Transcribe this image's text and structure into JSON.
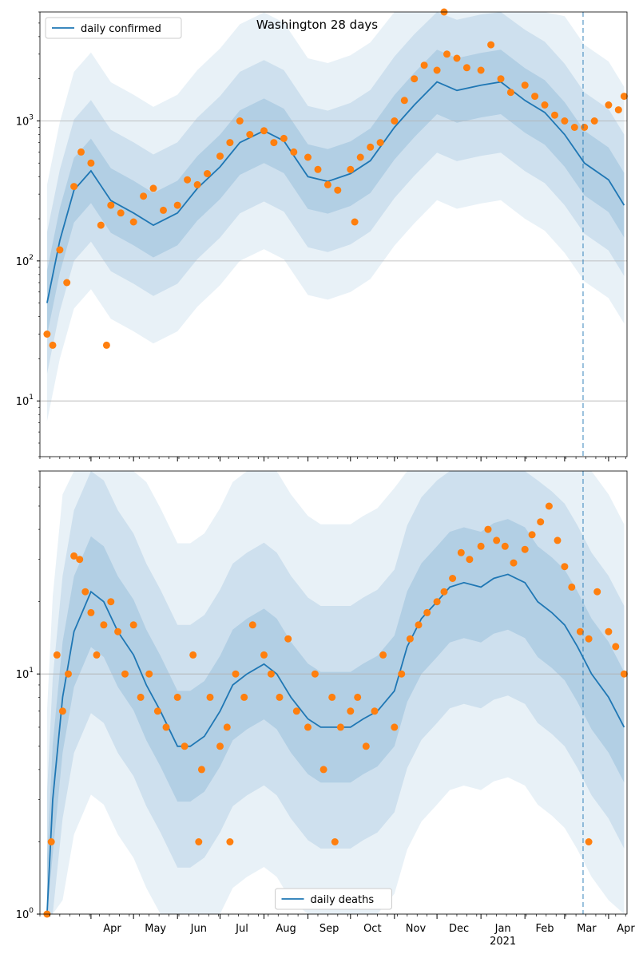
{
  "figure": {
    "title": "Washington 28 days"
  },
  "colors": {
    "line": "#1f77b4",
    "points": "#ff7f0e",
    "band": "#1f77b4",
    "grid": "#b0b0b0",
    "vline": "#1f77b4"
  },
  "chart_data": [
    {
      "type": "line",
      "panel": "top",
      "scale": "log",
      "ylim": [
        4,
        6000
      ],
      "yticks": [
        10,
        100,
        1000
      ],
      "ytick_labels": [
        "10^1",
        "10^2",
        "10^3"
      ],
      "grid": true,
      "legend": {
        "label": "daily confirmed",
        "position": "top-left"
      },
      "series": [
        {
          "name": "daily confirmed",
          "role": "model-median",
          "x": [
            "2020-03-01",
            "2020-03-10",
            "2020-03-20",
            "2020-04-01",
            "2020-04-15",
            "2020-05-01",
            "2020-05-15",
            "2020-06-01",
            "2020-06-15",
            "2020-07-01",
            "2020-07-15",
            "2020-08-01",
            "2020-08-15",
            "2020-09-01",
            "2020-09-15",
            "2020-10-01",
            "2020-10-15",
            "2020-11-01",
            "2020-11-15",
            "2020-12-01",
            "2020-12-15",
            "2021-01-01",
            "2021-01-15",
            "2021-02-01",
            "2021-02-15",
            "2021-03-01",
            "2021-03-15",
            "2021-04-01",
            "2021-04-12"
          ],
          "y": [
            50,
            140,
            320,
            440,
            270,
            220,
            180,
            220,
            330,
            470,
            700,
            850,
            720,
            400,
            370,
            420,
            520,
            900,
            1300,
            1900,
            1650,
            1800,
            1900,
            1400,
            1150,
            800,
            500,
            380,
            250
          ]
        },
        {
          "name": "observed",
          "role": "points",
          "x": [
            "2020-03-01",
            "2020-03-05",
            "2020-03-10",
            "2020-03-15",
            "2020-03-20",
            "2020-03-25",
            "2020-04-01",
            "2020-04-08",
            "2020-04-15",
            "2020-04-22",
            "2020-05-01",
            "2020-05-08",
            "2020-05-15",
            "2020-05-22",
            "2020-06-01",
            "2020-06-08",
            "2020-06-15",
            "2020-06-22",
            "2020-07-01",
            "2020-07-08",
            "2020-07-15",
            "2020-07-22",
            "2020-08-01",
            "2020-08-08",
            "2020-08-15",
            "2020-08-22",
            "2020-09-01",
            "2020-09-08",
            "2020-09-15",
            "2020-09-22",
            "2020-10-01",
            "2020-10-08",
            "2020-10-15",
            "2020-10-22",
            "2020-11-01",
            "2020-11-08",
            "2020-11-15",
            "2020-11-22",
            "2020-12-01",
            "2020-12-08",
            "2020-12-15",
            "2020-12-22",
            "2021-01-01",
            "2021-01-08",
            "2021-01-15",
            "2021-01-22",
            "2021-02-01",
            "2021-02-08",
            "2021-02-15",
            "2021-02-22",
            "2021-03-01",
            "2021-03-08",
            "2021-03-15",
            "2021-03-22",
            "2021-04-01",
            "2021-04-08",
            "2021-04-12",
            "2020-04-12",
            "2020-10-04",
            "2020-12-06"
          ],
          "y": [
            30,
            25,
            120,
            70,
            340,
            600,
            500,
            180,
            250,
            220,
            190,
            290,
            330,
            230,
            250,
            380,
            350,
            420,
            560,
            700,
            1000,
            800,
            850,
            700,
            750,
            600,
            550,
            450,
            350,
            320,
            450,
            550,
            650,
            700,
            1000,
            1400,
            2000,
            2500,
            2300,
            3000,
            2800,
            2400,
            2300,
            3500,
            2000,
            1600,
            1800,
            1500,
            1300,
            1100,
            1000,
            900,
            900,
            1000,
            1300,
            1200,
            1500,
            25,
            190,
            6000
          ]
        }
      ]
    },
    {
      "type": "line",
      "panel": "bottom",
      "scale": "log",
      "ylim": [
        1,
        70
      ],
      "yticks": [
        1,
        10
      ],
      "ytick_labels": [
        "10^0",
        "10^1"
      ],
      "grid": true,
      "legend": {
        "label": "daily deaths",
        "position": "bottom-center"
      },
      "x_tick_labels": [
        "Apr",
        "May",
        "Jun",
        "Jul",
        "Aug",
        "Sep",
        "Oct",
        "Nov",
        "Dec",
        "Jan\n2021",
        "Feb",
        "Mar",
        "Apr"
      ],
      "series": [
        {
          "name": "daily deaths",
          "role": "model-median",
          "x": [
            "2020-03-01",
            "2020-03-05",
            "2020-03-12",
            "2020-03-20",
            "2020-04-01",
            "2020-04-10",
            "2020-04-20",
            "2020-05-01",
            "2020-05-10",
            "2020-05-20",
            "2020-06-01",
            "2020-06-10",
            "2020-06-20",
            "2020-07-01",
            "2020-07-10",
            "2020-07-20",
            "2020-08-01",
            "2020-08-10",
            "2020-08-20",
            "2020-09-01",
            "2020-09-10",
            "2020-09-20",
            "2020-10-01",
            "2020-10-10",
            "2020-10-20",
            "2020-11-01",
            "2020-11-10",
            "2020-11-20",
            "2020-12-01",
            "2020-12-10",
            "2020-12-20",
            "2021-01-01",
            "2021-01-10",
            "2021-01-20",
            "2021-02-01",
            "2021-02-10",
            "2021-02-20",
            "2021-03-01",
            "2021-03-10",
            "2021-03-20",
            "2021-04-01",
            "2021-04-12"
          ],
          "y": [
            1.0,
            3.0,
            8.0,
            15.0,
            22.0,
            20.0,
            15.0,
            12.0,
            9.0,
            7.0,
            5.0,
            5.0,
            5.5,
            7.0,
            9.0,
            10.0,
            11.0,
            10.0,
            8.0,
            6.5,
            6.0,
            6.0,
            6.0,
            6.5,
            7.0,
            8.5,
            13.0,
            17.0,
            20.0,
            23.0,
            24.0,
            23.0,
            25.0,
            26.0,
            24.0,
            20.0,
            18.0,
            16.0,
            13.0,
            10.0,
            8.0,
            6.0
          ]
        },
        {
          "name": "observed",
          "role": "points",
          "x": [
            "2020-03-01",
            "2020-03-04",
            "2020-03-08",
            "2020-03-12",
            "2020-03-16",
            "2020-03-20",
            "2020-03-24",
            "2020-03-28",
            "2020-04-01",
            "2020-04-05",
            "2020-04-10",
            "2020-04-15",
            "2020-04-20",
            "2020-04-25",
            "2020-05-01",
            "2020-05-06",
            "2020-05-12",
            "2020-05-18",
            "2020-05-24",
            "2020-06-01",
            "2020-06-06",
            "2020-06-12",
            "2020-06-18",
            "2020-06-24",
            "2020-07-01",
            "2020-07-06",
            "2020-07-12",
            "2020-07-18",
            "2020-07-24",
            "2020-08-01",
            "2020-08-06",
            "2020-08-12",
            "2020-08-18",
            "2020-08-24",
            "2020-09-01",
            "2020-09-06",
            "2020-09-12",
            "2020-09-18",
            "2020-09-24",
            "2020-10-01",
            "2020-10-06",
            "2020-10-12",
            "2020-10-18",
            "2020-10-24",
            "2020-11-01",
            "2020-11-06",
            "2020-11-12",
            "2020-11-18",
            "2020-11-24",
            "2020-12-01",
            "2020-12-06",
            "2020-12-12",
            "2020-12-18",
            "2020-12-24",
            "2021-01-01",
            "2021-01-06",
            "2021-01-12",
            "2021-01-18",
            "2021-01-24",
            "2021-02-01",
            "2021-02-06",
            "2021-02-12",
            "2021-02-18",
            "2021-02-24",
            "2021-03-01",
            "2021-03-06",
            "2021-03-12",
            "2021-03-18",
            "2021-03-24",
            "2021-04-01",
            "2021-04-06",
            "2021-04-12",
            "2020-06-16",
            "2020-07-08",
            "2020-09-20",
            "2021-03-18"
          ],
          "y": [
            1,
            2,
            12,
            7,
            10,
            31,
            30,
            22,
            18,
            12,
            16,
            20,
            15,
            10,
            16,
            8,
            10,
            7,
            6,
            8,
            5,
            12,
            4,
            8,
            5,
            6,
            10,
            8,
            16,
            12,
            10,
            8,
            14,
            7,
            6,
            10,
            4,
            8,
            6,
            7,
            8,
            5,
            7,
            12,
            6,
            10,
            14,
            16,
            18,
            20,
            22,
            25,
            32,
            30,
            34,
            40,
            36,
            34,
            29,
            33,
            38,
            43,
            50,
            36,
            28,
            23,
            15,
            14,
            22,
            15,
            13,
            10,
            2,
            2,
            2,
            2
          ]
        }
      ],
      "vline": "2021-03-14"
    }
  ]
}
